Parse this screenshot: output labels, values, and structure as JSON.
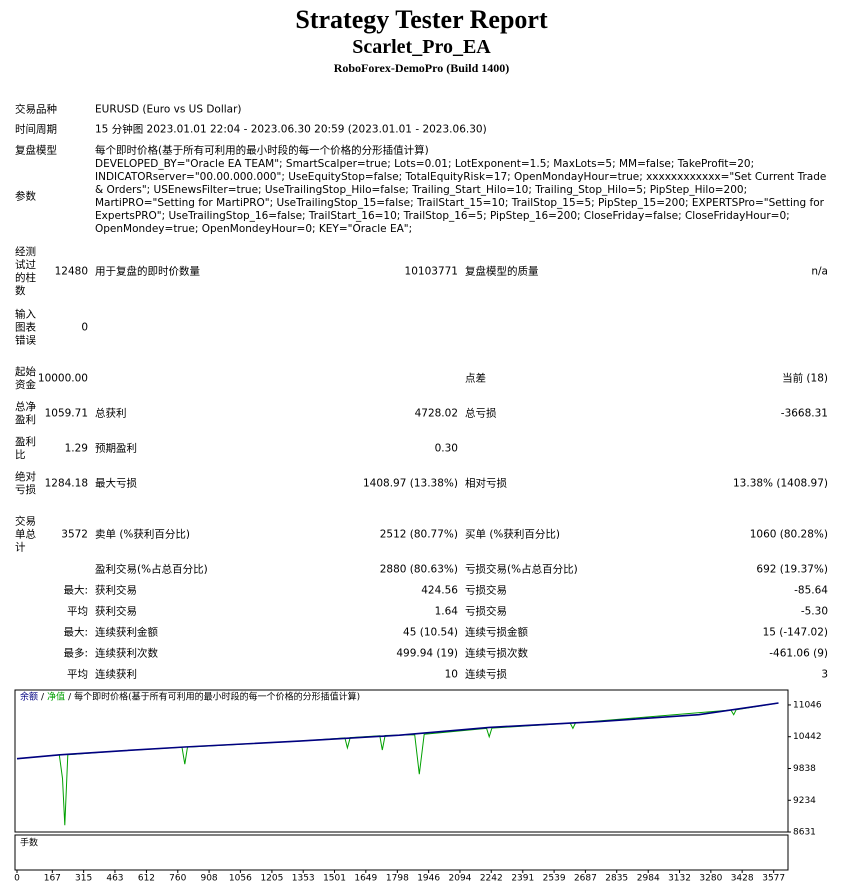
{
  "header": {
    "title": "Strategy Tester Report",
    "subtitle": "Scarlet_Pro_EA",
    "broker": "RoboForex-DemoPro (Build 1400)"
  },
  "info": [
    [
      "交易品种",
      "EURUSD (Euro vs US Dollar)"
    ],
    [
      "时间周期",
      "15 分钟图 2023.01.01 22:04 - 2023.06.30 20:59 (2023.01.01 - 2023.06.30)"
    ],
    [
      "复盘模型",
      "每个即时价格(基于所有可利用的最小时段的每一个价格的分形插值计算)"
    ],
    [
      "参数",
      "DEVELOPED_BY=\"Oracle EA TEAM\"; SmartScalper=true; Lots=0.01; LotExponent=1.5; MaxLots=5; MM=false; TakeProfit=20; INDICATORserver=\"00.00.000.000\"; UseEquityStop=false; TotalEquityRisk=17; OpenMondayHour=true; xxxxxxxxxxxx=\"Set Current Trade & Orders\"; USEnewsFilter=true; UseTrailingStop_Hilo=false; Trailing_Start_Hilo=10; Trailing_Stop_Hilo=5; PipStep_Hilo=200; MartiPRO=\"Setting for MartiPRO\"; UseTrailingStop_15=false; TrailStart_15=10; TrailStop_15=5; PipStep_15=200; EXPERTSPro=\"Setting for ExpertsPRO\"; UseTrailingStop_16=false; TrailStart_16=10; TrailStop_16=5; PipStep_16=200; CloseFriday=false; CloseFridayHour=0; OpenMondey=true; OpenMondeyHour=0; KEY=\"Oracle EA\";"
    ]
  ],
  "stats": [
    [
      "经测试过的柱数",
      "12480",
      "用于复盘的即时价数量",
      "10103771",
      "复盘模型的质量",
      "n/a"
    ],
    [
      "输入图表错误",
      "0",
      null,
      null,
      null,
      null
    ],
    [
      "起始资金",
      "10000.00",
      null,
      null,
      "点差",
      "当前 (18)"
    ],
    [
      "总净盈利",
      "1059.71",
      "总获利",
      "4728.02",
      "总亏损",
      "-3668.31"
    ],
    [
      "盈利比",
      "1.29",
      "预期盈利",
      "0.30",
      null,
      null
    ],
    [
      "绝对亏损",
      "1284.18",
      "最大亏损",
      "1408.97 (13.38%)",
      "相对亏损",
      "13.38% (1408.97)"
    ],
    [
      "交易单总计",
      "3572",
      "卖单 (%获利百分比)",
      "2512 (80.77%)",
      "买单 (%获利百分比)",
      "1060 (80.28%)"
    ],
    [
      null,
      null,
      "盈利交易(%占总百分比)",
      "2880 (80.63%)",
      "亏损交易(%占总百分比)",
      "692 (19.37%)"
    ],
    [
      "最大:",
      null,
      "获利交易",
      "424.56",
      "亏损交易",
      "-85.64"
    ],
    [
      "平均",
      null,
      "获利交易",
      "1.64",
      "亏损交易",
      "-5.30"
    ],
    [
      "最大:",
      null,
      "连续获利金额",
      "45 (10.54)",
      "连续亏损金额",
      "15 (-147.02)"
    ],
    [
      "最多:",
      null,
      "连续获利次数",
      "499.94 (19)",
      "连续亏损次数",
      "-461.06 (9)"
    ],
    [
      "平均",
      null,
      "连续获利",
      "10",
      "连续亏损",
      "3"
    ]
  ],
  "chart_data": {
    "type": "line",
    "legend_separator": "/",
    "legend_note": "每个即时价格(基于所有可利用的最小时段的每一个价格的分形插值计算)",
    "lots_label": "手数",
    "xlim": [
      0,
      3640
    ],
    "ylim": [
      8631,
      11330
    ],
    "xticks": [
      0,
      167,
      315,
      463,
      612,
      760,
      908,
      1056,
      1205,
      1353,
      1501,
      1649,
      1798,
      1946,
      2094,
      2242,
      2391,
      2539,
      2687,
      2835,
      2984,
      3132,
      3280,
      3428,
      3577
    ],
    "yticks": [
      8631,
      9234,
      9838,
      10442,
      11046
    ],
    "series": [
      {
        "name": "余额",
        "color": "#000080",
        "x": [
          0,
          203,
          486,
          793,
          1335,
          1807,
          2232,
          2751,
          3223,
          3600
        ],
        "values": [
          10024,
          10098,
          10172,
          10247,
          10358,
          10470,
          10619,
          10730,
          10860,
          11083
        ]
      },
      {
        "name": "净值",
        "color": "#00a000",
        "x": [
          0,
          200,
          215,
          226,
          240,
          486,
          780,
          793,
          806,
          1335,
          1550,
          1562,
          1575,
          1715,
          1727,
          1740,
          1880,
          1902,
          1925,
          2220,
          2232,
          2245,
          2615,
          2628,
          2640,
          3375,
          3388,
          3400,
          3600
        ],
        "values": [
          10024,
          10098,
          9650,
          8760,
          10098,
          10172,
          10240,
          9920,
          10245,
          10358,
          10420,
          10230,
          10425,
          10460,
          10190,
          10465,
          10480,
          9730,
          10490,
          10600,
          10440,
          10605,
          10700,
          10600,
          10705,
          10950,
          10860,
          10955,
          11083
        ]
      }
    ]
  }
}
